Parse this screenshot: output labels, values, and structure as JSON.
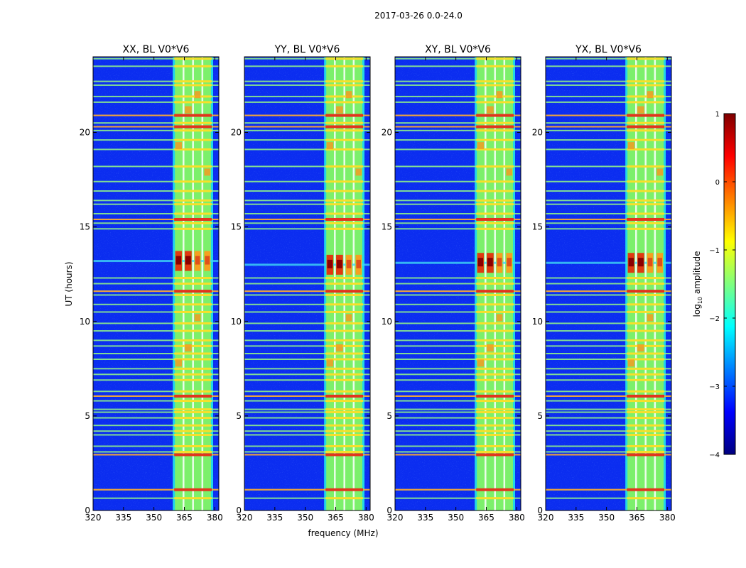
{
  "chart_data": {
    "type": "heatmap",
    "title": "2017-03-26 0.0-24.0",
    "xlabel": "frequency (MHz)",
    "ylabel": "UT (hours)",
    "xlim": [
      320,
      382
    ],
    "ylim": [
      0,
      24
    ],
    "x_ticks": [
      320,
      335,
      350,
      365,
      380
    ],
    "y_ticks": [
      0,
      5,
      10,
      15,
      20
    ],
    "panels": [
      {
        "title": "XX, BL V0*V6",
        "pol": "XX",
        "peak_ut": 13.2
      },
      {
        "title": "YY, BL V0*V6",
        "pol": "YY",
        "peak_ut": 13.0
      },
      {
        "title": "XY, BL V0*V6",
        "pol": "XY",
        "peak_ut": 13.1
      },
      {
        "title": "YX, BL V0*V6",
        "pol": "YX",
        "peak_ut": 13.1
      }
    ],
    "band": {
      "start_mhz": 360,
      "end_mhz": 378.5
    },
    "band_channels_mhz": [
      364.5,
      369.2,
      373.8
    ],
    "rfi_lines_ut": [
      0.65,
      1.1,
      2.95,
      3.1,
      3.4,
      4.0,
      4.2,
      4.5,
      4.9,
      5.2,
      5.35,
      5.8,
      6.05,
      6.3,
      6.9,
      7.2,
      7.5,
      8.0,
      8.3,
      8.7,
      9.0,
      9.5,
      9.9,
      10.5,
      10.9,
      11.4,
      11.6,
      12.0,
      12.3,
      14.9,
      15.2,
      15.4,
      15.7,
      16.2,
      16.4,
      16.9,
      17.4,
      18.2,
      19.1,
      19.6,
      20.1,
      20.3,
      20.5,
      20.9,
      21.6,
      21.9,
      22.5,
      22.7,
      23.5,
      23.9
    ],
    "hot_lines_ut": [
      1.1,
      2.95,
      6.05,
      11.6,
      15.4,
      20.3,
      20.9
    ],
    "colorbar": {
      "label": "log10 amplitude",
      "min": -4,
      "max": 1,
      "ticks": [
        1,
        0,
        -1,
        -2,
        -3,
        -4
      ],
      "tick_labels": [
        "1",
        "0",
        "−1",
        "−2",
        "−3",
        "−4"
      ],
      "colormap": "jet"
    }
  }
}
